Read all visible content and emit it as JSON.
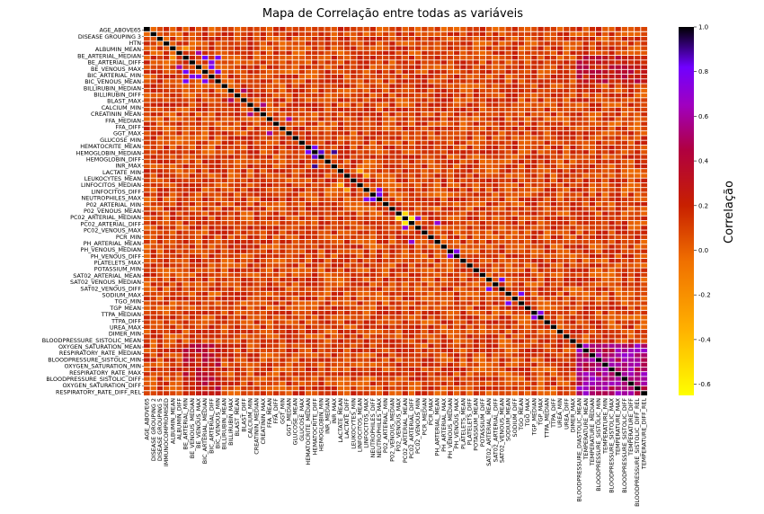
{
  "chart_data": {
    "type": "heatmap",
    "title": "Mapa de Correlação entre todas as variáveis",
    "colorbar_label": "Correlação",
    "colormap": "gnuplot-like (yellow → orange → red → purple → black)",
    "color_stops": [
      {
        "value": -0.65,
        "color": "#ffff00"
      },
      {
        "value": -0.35,
        "color": "#ffb000"
      },
      {
        "value": -0.05,
        "color": "#f07000"
      },
      {
        "value": 0.2,
        "color": "#c82000"
      },
      {
        "value": 0.45,
        "color": "#b00040"
      },
      {
        "value": 0.65,
        "color": "#a000c0"
      },
      {
        "value": 0.82,
        "color": "#7000ff"
      },
      {
        "value": 1.0,
        "color": "#000000"
      }
    ],
    "colorbar_ticks": [
      "1.0",
      "0.8",
      "0.6",
      "0.4",
      "0.2",
      "0.0",
      "-0.2",
      "-0.4",
      "-0.6"
    ],
    "vmin": -0.65,
    "vmax": 1.0,
    "y_labels": [
      "AGE_ABOVE65",
      "DISEASE GROUPING 3",
      "HTN",
      "ALBUMIN_MEAN",
      "BE_ARTERIAL_MEDIAN",
      "BE_ARTERIAL_DIFF",
      "BE_VENOUS_MAX",
      "BIC_ARTERIAL_MIN",
      "BIC_VENOUS_MEAN",
      "BILLIRUBIN_MEDIAN",
      "BILLIRUBIN_DIFF",
      "BLAST_MAX",
      "CALCIUM_MIN",
      "CREATININ_MEAN",
      "FFA_MEDIAN",
      "FFA_DIFF",
      "GGT_MAX",
      "GLUCOSE_MIN",
      "HEMATOCRITE_MEAN",
      "HEMOGLOBIN_MEDIAN",
      "HEMOGLOBIN_DIFF",
      "INR_MAX",
      "LACTATE_MIN",
      "LEUKOCYTES_MEAN",
      "LINFOCITOS_MEDIAN",
      "LINFOCITOS_DIFF",
      "NEUTROPHILES_MAX",
      "P02_ARTERIAL_MIN",
      "P02_VENOUS_MEAN",
      "PC02_ARTERIAL_MEDIAN",
      "PC02_ARTERIAL_DIFF",
      "PC02_VENOUS_MAX",
      "PCR_MIN",
      "PH_ARTERIAL_MEAN",
      "PH_VENOUS_MEDIAN",
      "PH_VENOUS_DIFF",
      "PLATELETS_MAX",
      "POTASSIUM_MIN",
      "SAT02_ARTERIAL_MEAN",
      "SAT02_VENOUS_MEDIAN",
      "SAT02_VENOUS_DIFF",
      "SODIUM_MAX",
      "TGO_MIN",
      "TGP_MEAN",
      "TTPA_MEDIAN",
      "TTPA_DIFF",
      "UREA_MAX",
      "DIMER_MIN",
      "BLOODPRESSURE_SISTOLIC_MEAN",
      "OXYGEN_SATURATION_MEAN",
      "RESPIRATORY_RATE_MEDIAN",
      "BLOODPRESSURE_SISTOLIC_MIN",
      "OXYGEN_SATURATION_MIN",
      "RESPIRATORY_RATE_MAX",
      "BLOODPRESSURE_SISTOLIC_DIFF",
      "OXYGEN_SATURATION_DIFF",
      "RESPIRATORY_RATE_DIFF_REL"
    ],
    "x_labels": [
      "AGE_ABOVE65",
      "DISEASE GROUPING 2",
      "DISEASE GROUPING 5",
      "IMMUNOCOMPROMISED",
      "ALBUMIN_MEAN",
      "ALBUMIN_DIFF",
      "BE_ARTERIAL_MIN",
      "BE_VENOUS_MEDIAN",
      "BE_VENOUS_MAX",
      "BIC_ARTERIAL_MEDIAN",
      "BIC_ARTERIAL_DIFF",
      "BIC_VENOUS_MIN",
      "BILLIRUBIN_MEAN",
      "BILLIRUBIN_MAX",
      "BLAST_MEAN",
      "BLAST_DIFF",
      "CALCIUM_MIN",
      "CREATININ_MEDIAN",
      "CREATININ_MAX",
      "FFA_MEAN",
      "FFA_DIFF",
      "GGT_MIN",
      "GGT_MEDIAN",
      "GLUCOSE_MEAN",
      "GLUCOSE_MAX",
      "HEMATOCRITE_MEDIAN",
      "HEMATOCRITE_DIFF",
      "HEMOGLOBIN_MIN",
      "INR_MEDIAN",
      "INR_MAX",
      "LACTATE_MEAN",
      "LACTATE_DIFF",
      "LEUKOCYTES_MIN",
      "LINFOCITOS_MEAN",
      "LINFOCITOS_MAX",
      "NEUTROPHILES_DIFF",
      "NEUTROPHILES_MAX",
      "P02_ARTERIAL_MIN",
      "P02_VENOUS_MEDIAN",
      "P02_VENOUS_MAX",
      "PC02_ARTERIAL_MEAN",
      "PC02_ARTERIAL_DIFF",
      "PC02_VENOUS_MIN",
      "PCR_MEDIAN",
      "PCR_MAX",
      "PH_ARTERIAL_MEAN",
      "PH_ARTERIAL_MAX",
      "PH_VENOUS_MEDIAN",
      "PH_VENOUS_MAX",
      "PLATELETS_MEAN",
      "PLATELETS_DIFF",
      "POTASSIUM_MEAN",
      "POTASSIUM_DIFF",
      "SAT02_ARTERIAL_MEAN",
      "SAT02_ARTERIAL_DIFF",
      "SAT02_VENOUS_MEAN",
      "SODIUM_MEAN",
      "SODIUM_DIFF",
      "TGO_MEAN",
      "TGO_MAX",
      "TGP_MEDIAN",
      "TGP_MAX",
      "TTPA_MEDIAN",
      "TTPA_DIFF",
      "UREA_MIN",
      "UREA_DIFF",
      "DIMER_MAX",
      "BLOODPRESSURE_DIASTOLIC_MEAN",
      "TEMPERATURE_MEAN",
      "TEMPERATURE_MEDIAN",
      "BLOODPRESSURE_SISTOLIC_MIN",
      "TEMPERATURE_MIN",
      "BLOODPRESSURE_SISTOLIC_MAX",
      "TEMPERATURE_MAX",
      "BLOODPRESSURE_SISTOLIC_DIFF",
      "TEMPERATURE_DIFF",
      "BLOODPRESSURE_SISTOLIC_DIFF_REL",
      "TEMPERATURE_DIFF_REL"
    ],
    "matrix_size": 78,
    "background_correlation": 0.1,
    "diagonal_value": 1.0,
    "highlights": [
      {
        "i": 6,
        "j": 9,
        "value": 0.82
      },
      {
        "i": 6,
        "j": 11,
        "value": 0.8
      },
      {
        "i": 9,
        "j": 11,
        "value": 0.78
      },
      {
        "i": 7,
        "j": 10,
        "value": 0.75
      },
      {
        "i": 8,
        "j": 10,
        "value": 0.78
      },
      {
        "i": 5,
        "j": 8,
        "value": 0.6
      },
      {
        "i": 26,
        "j": 29,
        "value": 0.9
      },
      {
        "i": 26,
        "j": 27,
        "value": 0.85
      },
      {
        "i": 25,
        "j": 26,
        "value": 0.8
      },
      {
        "i": 35,
        "j": 36,
        "value": 0.8
      },
      {
        "i": 34,
        "j": 36,
        "value": 0.75
      },
      {
        "i": 41,
        "j": 45,
        "value": 0.7
      },
      {
        "i": 40,
        "j": 42,
        "value": 0.7
      },
      {
        "i": 47,
        "j": 48,
        "value": 0.75
      },
      {
        "i": 53,
        "j": 55,
        "value": 0.8
      },
      {
        "i": 56,
        "j": 58,
        "value": 0.8
      },
      {
        "i": 60,
        "j": 61,
        "value": 0.75
      },
      {
        "i": 19,
        "j": 22,
        "value": 0.6
      },
      {
        "i": 16,
        "j": 18,
        "value": 0.55
      },
      {
        "i": 13,
        "j": 15,
        "value": 0.5
      },
      {
        "i": 39,
        "j": 40,
        "value": -0.5
      },
      {
        "i": 40,
        "j": 41,
        "value": -0.55
      },
      {
        "i": 30,
        "j": 33,
        "value": -0.3
      },
      {
        "i": 31,
        "j": 34,
        "value": -0.25
      },
      {
        "i": 4,
        "j": 6,
        "value": -0.2
      }
    ],
    "block_regions": [
      {
        "rows": [
          67,
          77
        ],
        "cols": [
          67,
          77
        ],
        "value": 0.55
      },
      {
        "rows": [
          67,
          77
        ],
        "cols": [
          6,
          11
        ],
        "value": 0.3
      }
    ]
  }
}
